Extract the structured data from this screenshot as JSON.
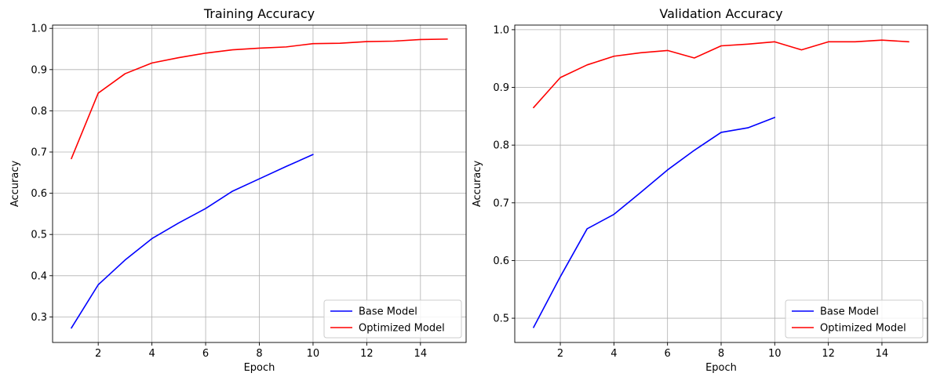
{
  "chart_data": [
    {
      "type": "line",
      "title": "Training Accuracy",
      "xlabel": "Epoch",
      "ylabel": "Accuracy",
      "xlim": [
        0.3,
        15.7
      ],
      "ylim": [
        0.238,
        1.008
      ],
      "xticks": [
        2,
        4,
        6,
        8,
        10,
        12,
        14
      ],
      "yticks": [
        0.3,
        0.4,
        0.5,
        0.6,
        0.7,
        0.8,
        0.9,
        1.0
      ],
      "ytick_labels": [
        "0.3",
        "0.4",
        "0.5",
        "0.6",
        "0.7",
        "0.8",
        "0.9",
        "1.0"
      ],
      "grid": true,
      "legend_position": "lower-right",
      "series": [
        {
          "name": "Base Model",
          "color": "#0000ff",
          "x": [
            1,
            2,
            3,
            4,
            5,
            6,
            7,
            8,
            9,
            10
          ],
          "y": [
            0.273,
            0.378,
            0.438,
            0.49,
            0.528,
            0.563,
            0.605,
            0.635,
            0.665,
            0.694
          ]
        },
        {
          "name": "Optimized Model",
          "color": "#ff0000",
          "x": [
            1,
            2,
            3,
            4,
            5,
            6,
            7,
            8,
            9,
            10,
            11,
            12,
            13,
            14,
            15
          ],
          "y": [
            0.684,
            0.843,
            0.89,
            0.916,
            0.929,
            0.94,
            0.948,
            0.952,
            0.955,
            0.963,
            0.964,
            0.968,
            0.969,
            0.973,
            0.974
          ]
        }
      ]
    },
    {
      "type": "line",
      "title": "Validation Accuracy",
      "xlabel": "Epoch",
      "ylabel": "Accuracy",
      "xlim": [
        0.3,
        15.7
      ],
      "ylim": [
        0.458,
        1.008
      ],
      "xticks": [
        2,
        4,
        6,
        8,
        10,
        12,
        14
      ],
      "yticks": [
        0.5,
        0.6,
        0.7,
        0.8,
        0.9,
        1.0
      ],
      "ytick_labels": [
        "0.5",
        "0.6",
        "0.7",
        "0.8",
        "0.9",
        "1.0"
      ],
      "grid": true,
      "legend_position": "lower-right",
      "series": [
        {
          "name": "Base Model",
          "color": "#0000ff",
          "x": [
            1,
            2,
            3,
            4,
            5,
            6,
            7,
            8,
            9,
            10
          ],
          "y": [
            0.484,
            0.572,
            0.655,
            0.68,
            0.718,
            0.757,
            0.791,
            0.822,
            0.83,
            0.848
          ]
        },
        {
          "name": "Optimized Model",
          "color": "#ff0000",
          "x": [
            1,
            2,
            3,
            4,
            5,
            6,
            7,
            8,
            9,
            10,
            11,
            12,
            13,
            14,
            15
          ],
          "y": [
            0.865,
            0.917,
            0.939,
            0.954,
            0.96,
            0.964,
            0.951,
            0.972,
            0.975,
            0.979,
            0.965,
            0.979,
            0.979,
            0.982,
            0.979
          ]
        }
      ]
    }
  ]
}
